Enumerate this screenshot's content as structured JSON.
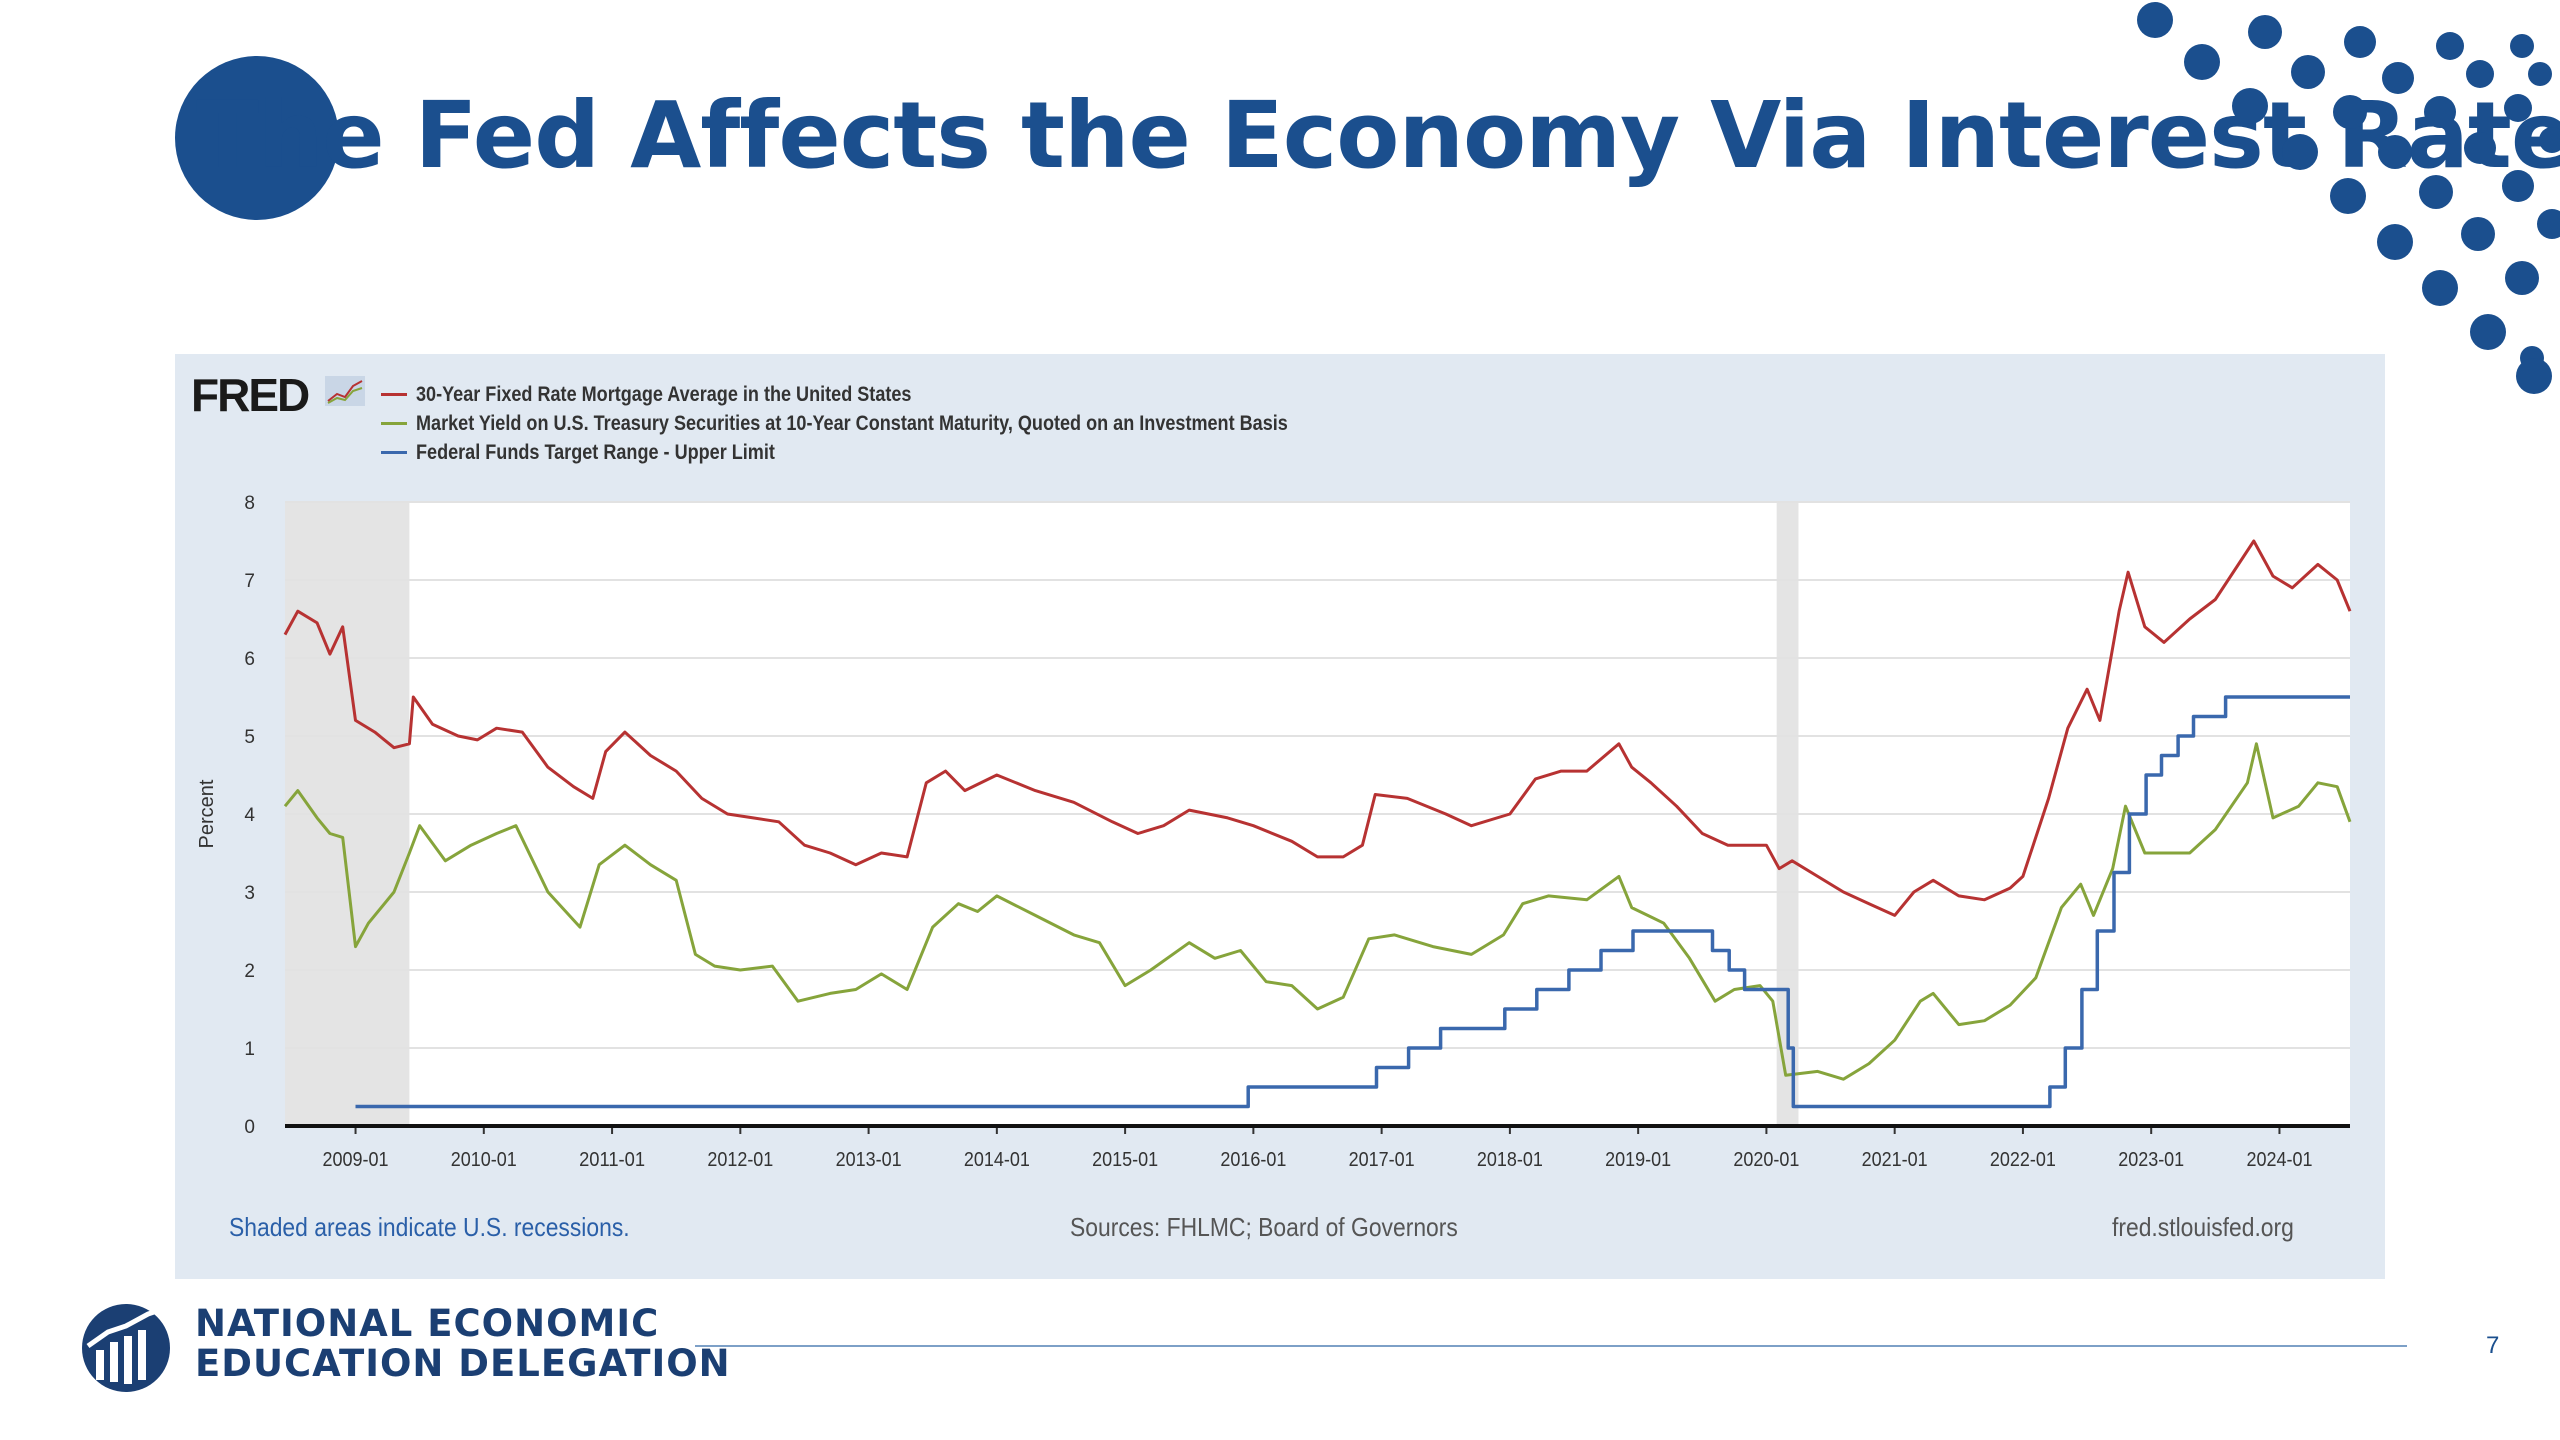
{
  "slide": {
    "title": "The Fed Affects the Economy Via Interest Rates",
    "page_number": "7"
  },
  "footer": {
    "org_line1": "NATIONAL ECONOMIC",
    "org_line2": "EDUCATION DELEGATION"
  },
  "colors": {
    "brand_blue": "#1b4f8e",
    "mortgage": "#b73232",
    "treasury": "#86a43b",
    "fedfunds": "#3a68ad"
  },
  "fred": {
    "logo": "FRED",
    "recession_note": "Shaded areas indicate U.S. recessions.",
    "sources": "Sources: FHLMC; Board of Governors",
    "site": "fred.stlouisfed.org"
  },
  "chart_data": {
    "type": "line",
    "ylabel": "Percent",
    "ylim": [
      0,
      8
    ],
    "yticks": [
      0,
      1,
      2,
      3,
      4,
      5,
      6,
      7,
      8
    ],
    "xlim": [
      2008.45,
      2024.55
    ],
    "xticks": [
      {
        "label": "2009-01",
        "x": 2009.0
      },
      {
        "label": "2010-01",
        "x": 2010.0
      },
      {
        "label": "2011-01",
        "x": 2011.0
      },
      {
        "label": "2012-01",
        "x": 2012.0
      },
      {
        "label": "2013-01",
        "x": 2013.0
      },
      {
        "label": "2014-01",
        "x": 2014.0
      },
      {
        "label": "2015-01",
        "x": 2015.0
      },
      {
        "label": "2016-01",
        "x": 2016.0
      },
      {
        "label": "2017-01",
        "x": 2017.0
      },
      {
        "label": "2018-01",
        "x": 2018.0
      },
      {
        "label": "2019-01",
        "x": 2019.0
      },
      {
        "label": "2020-01",
        "x": 2020.0
      },
      {
        "label": "2021-01",
        "x": 2021.0
      },
      {
        "label": "2022-01",
        "x": 2022.0
      },
      {
        "label": "2023-01",
        "x": 2023.0
      },
      {
        "label": "2024-01",
        "x": 2024.0
      }
    ],
    "recessions": [
      [
        2008.45,
        2009.42
      ],
      [
        2020.08,
        2020.25
      ]
    ],
    "grid": true,
    "legend_position": "top-left",
    "series": [
      {
        "name": "30-Year Fixed Rate Mortgage Average in the United States",
        "color": "#b73232",
        "step": false,
        "points": [
          [
            2008.45,
            6.3
          ],
          [
            2008.55,
            6.6
          ],
          [
            2008.7,
            6.45
          ],
          [
            2008.8,
            6.05
          ],
          [
            2008.9,
            6.4
          ],
          [
            2009.0,
            5.2
          ],
          [
            2009.15,
            5.05
          ],
          [
            2009.3,
            4.85
          ],
          [
            2009.42,
            4.9
          ],
          [
            2009.45,
            5.5
          ],
          [
            2009.6,
            5.15
          ],
          [
            2009.8,
            5.0
          ],
          [
            2009.95,
            4.95
          ],
          [
            2010.1,
            5.1
          ],
          [
            2010.3,
            5.05
          ],
          [
            2010.5,
            4.6
          ],
          [
            2010.7,
            4.35
          ],
          [
            2010.85,
            4.2
          ],
          [
            2010.95,
            4.8
          ],
          [
            2011.1,
            5.05
          ],
          [
            2011.3,
            4.75
          ],
          [
            2011.5,
            4.55
          ],
          [
            2011.7,
            4.2
          ],
          [
            2011.9,
            4.0
          ],
          [
            2012.1,
            3.95
          ],
          [
            2012.3,
            3.9
          ],
          [
            2012.5,
            3.6
          ],
          [
            2012.7,
            3.5
          ],
          [
            2012.9,
            3.35
          ],
          [
            2013.1,
            3.5
          ],
          [
            2013.3,
            3.45
          ],
          [
            2013.45,
            4.4
          ],
          [
            2013.6,
            4.55
          ],
          [
            2013.75,
            4.3
          ],
          [
            2014.0,
            4.5
          ],
          [
            2014.3,
            4.3
          ],
          [
            2014.6,
            4.15
          ],
          [
            2014.9,
            3.9
          ],
          [
            2015.1,
            3.75
          ],
          [
            2015.3,
            3.85
          ],
          [
            2015.5,
            4.05
          ],
          [
            2015.8,
            3.95
          ],
          [
            2016.0,
            3.85
          ],
          [
            2016.3,
            3.65
          ],
          [
            2016.5,
            3.45
          ],
          [
            2016.7,
            3.45
          ],
          [
            2016.85,
            3.6
          ],
          [
            2016.95,
            4.25
          ],
          [
            2017.2,
            4.2
          ],
          [
            2017.5,
            4.0
          ],
          [
            2017.7,
            3.85
          ],
          [
            2018.0,
            4.0
          ],
          [
            2018.2,
            4.45
          ],
          [
            2018.4,
            4.55
          ],
          [
            2018.6,
            4.55
          ],
          [
            2018.85,
            4.9
          ],
          [
            2018.95,
            4.6
          ],
          [
            2019.1,
            4.4
          ],
          [
            2019.3,
            4.1
          ],
          [
            2019.5,
            3.75
          ],
          [
            2019.7,
            3.6
          ],
          [
            2020.0,
            3.6
          ],
          [
            2020.1,
            3.3
          ],
          [
            2020.2,
            3.4
          ],
          [
            2020.4,
            3.2
          ],
          [
            2020.6,
            3.0
          ],
          [
            2020.8,
            2.85
          ],
          [
            2021.0,
            2.7
          ],
          [
            2021.15,
            3.0
          ],
          [
            2021.3,
            3.15
          ],
          [
            2021.5,
            2.95
          ],
          [
            2021.7,
            2.9
          ],
          [
            2021.9,
            3.05
          ],
          [
            2022.0,
            3.2
          ],
          [
            2022.2,
            4.2
          ],
          [
            2022.35,
            5.1
          ],
          [
            2022.5,
            5.6
          ],
          [
            2022.6,
            5.2
          ],
          [
            2022.75,
            6.6
          ],
          [
            2022.82,
            7.1
          ],
          [
            2022.95,
            6.4
          ],
          [
            2023.1,
            6.2
          ],
          [
            2023.3,
            6.5
          ],
          [
            2023.5,
            6.75
          ],
          [
            2023.8,
            7.5
          ],
          [
            2023.95,
            7.05
          ],
          [
            2024.1,
            6.9
          ],
          [
            2024.3,
            7.2
          ],
          [
            2024.45,
            7.0
          ],
          [
            2024.55,
            6.6
          ]
        ]
      },
      {
        "name": "Market Yield on U.S. Treasury Securities at 10-Year Constant Maturity, Quoted on an Investment Basis",
        "color": "#86a43b",
        "step": false,
        "points": [
          [
            2008.45,
            4.1
          ],
          [
            2008.55,
            4.3
          ],
          [
            2008.7,
            3.95
          ],
          [
            2008.8,
            3.75
          ],
          [
            2008.9,
            3.7
          ],
          [
            2009.0,
            2.3
          ],
          [
            2009.1,
            2.6
          ],
          [
            2009.3,
            3.0
          ],
          [
            2009.42,
            3.5
          ],
          [
            2009.5,
            3.85
          ],
          [
            2009.7,
            3.4
          ],
          [
            2009.9,
            3.6
          ],
          [
            2010.1,
            3.75
          ],
          [
            2010.25,
            3.85
          ],
          [
            2010.5,
            3.0
          ],
          [
            2010.75,
            2.55
          ],
          [
            2010.9,
            3.35
          ],
          [
            2011.1,
            3.6
          ],
          [
            2011.3,
            3.35
          ],
          [
            2011.5,
            3.15
          ],
          [
            2011.65,
            2.2
          ],
          [
            2011.8,
            2.05
          ],
          [
            2012.0,
            2.0
          ],
          [
            2012.25,
            2.05
          ],
          [
            2012.45,
            1.6
          ],
          [
            2012.7,
            1.7
          ],
          [
            2012.9,
            1.75
          ],
          [
            2013.1,
            1.95
          ],
          [
            2013.3,
            1.75
          ],
          [
            2013.5,
            2.55
          ],
          [
            2013.7,
            2.85
          ],
          [
            2013.85,
            2.75
          ],
          [
            2014.0,
            2.95
          ],
          [
            2014.3,
            2.7
          ],
          [
            2014.6,
            2.45
          ],
          [
            2014.8,
            2.35
          ],
          [
            2015.0,
            1.8
          ],
          [
            2015.2,
            2.0
          ],
          [
            2015.5,
            2.35
          ],
          [
            2015.7,
            2.15
          ],
          [
            2015.9,
            2.25
          ],
          [
            2016.1,
            1.85
          ],
          [
            2016.3,
            1.8
          ],
          [
            2016.5,
            1.5
          ],
          [
            2016.7,
            1.65
          ],
          [
            2016.9,
            2.4
          ],
          [
            2017.1,
            2.45
          ],
          [
            2017.4,
            2.3
          ],
          [
            2017.7,
            2.2
          ],
          [
            2017.95,
            2.45
          ],
          [
            2018.1,
            2.85
          ],
          [
            2018.3,
            2.95
          ],
          [
            2018.6,
            2.9
          ],
          [
            2018.85,
            3.2
          ],
          [
            2018.95,
            2.8
          ],
          [
            2019.2,
            2.6
          ],
          [
            2019.4,
            2.15
          ],
          [
            2019.6,
            1.6
          ],
          [
            2019.75,
            1.75
          ],
          [
            2019.95,
            1.8
          ],
          [
            2020.05,
            1.6
          ],
          [
            2020.15,
            0.65
          ],
          [
            2020.4,
            0.7
          ],
          [
            2020.6,
            0.6
          ],
          [
            2020.8,
            0.8
          ],
          [
            2021.0,
            1.1
          ],
          [
            2021.2,
            1.6
          ],
          [
            2021.3,
            1.7
          ],
          [
            2021.5,
            1.3
          ],
          [
            2021.7,
            1.35
          ],
          [
            2021.9,
            1.55
          ],
          [
            2022.1,
            1.9
          ],
          [
            2022.3,
            2.8
          ],
          [
            2022.45,
            3.1
          ],
          [
            2022.55,
            2.7
          ],
          [
            2022.7,
            3.3
          ],
          [
            2022.8,
            4.1
          ],
          [
            2022.95,
            3.5
          ],
          [
            2023.1,
            3.5
          ],
          [
            2023.3,
            3.5
          ],
          [
            2023.5,
            3.8
          ],
          [
            2023.75,
            4.4
          ],
          [
            2023.82,
            4.9
          ],
          [
            2023.95,
            3.95
          ],
          [
            2024.15,
            4.1
          ],
          [
            2024.3,
            4.4
          ],
          [
            2024.45,
            4.35
          ],
          [
            2024.55,
            3.9
          ]
        ]
      },
      {
        "name": "Federal Funds Target Range - Upper Limit",
        "color": "#3a68ad",
        "step": true,
        "points": [
          [
            2009.0,
            0.25
          ],
          [
            2015.96,
            0.25
          ],
          [
            2015.96,
            0.5
          ],
          [
            2016.96,
            0.5
          ],
          [
            2016.96,
            0.75
          ],
          [
            2017.21,
            0.75
          ],
          [
            2017.21,
            1.0
          ],
          [
            2017.46,
            1.0
          ],
          [
            2017.46,
            1.25
          ],
          [
            2017.96,
            1.25
          ],
          [
            2017.96,
            1.5
          ],
          [
            2018.21,
            1.5
          ],
          [
            2018.21,
            1.75
          ],
          [
            2018.46,
            1.75
          ],
          [
            2018.46,
            2.0
          ],
          [
            2018.71,
            2.0
          ],
          [
            2018.71,
            2.25
          ],
          [
            2018.96,
            2.25
          ],
          [
            2018.96,
            2.5
          ],
          [
            2019.58,
            2.5
          ],
          [
            2019.58,
            2.25
          ],
          [
            2019.71,
            2.25
          ],
          [
            2019.71,
            2.0
          ],
          [
            2019.83,
            2.0
          ],
          [
            2019.83,
            1.75
          ],
          [
            2020.17,
            1.75
          ],
          [
            2020.17,
            1.0
          ],
          [
            2020.21,
            1.0
          ],
          [
            2020.21,
            0.25
          ],
          [
            2022.21,
            0.25
          ],
          [
            2022.21,
            0.5
          ],
          [
            2022.33,
            0.5
          ],
          [
            2022.33,
            1.0
          ],
          [
            2022.46,
            1.0
          ],
          [
            2022.46,
            1.75
          ],
          [
            2022.58,
            1.75
          ],
          [
            2022.58,
            2.5
          ],
          [
            2022.71,
            2.5
          ],
          [
            2022.71,
            3.25
          ],
          [
            2022.83,
            3.25
          ],
          [
            2022.83,
            4.0
          ],
          [
            2022.96,
            4.0
          ],
          [
            2022.96,
            4.5
          ],
          [
            2023.08,
            4.5
          ],
          [
            2023.08,
            4.75
          ],
          [
            2023.21,
            4.75
          ],
          [
            2023.21,
            5.0
          ],
          [
            2023.33,
            5.0
          ],
          [
            2023.33,
            5.25
          ],
          [
            2023.58,
            5.25
          ],
          [
            2023.58,
            5.5
          ],
          [
            2024.55,
            5.5
          ]
        ]
      }
    ]
  }
}
